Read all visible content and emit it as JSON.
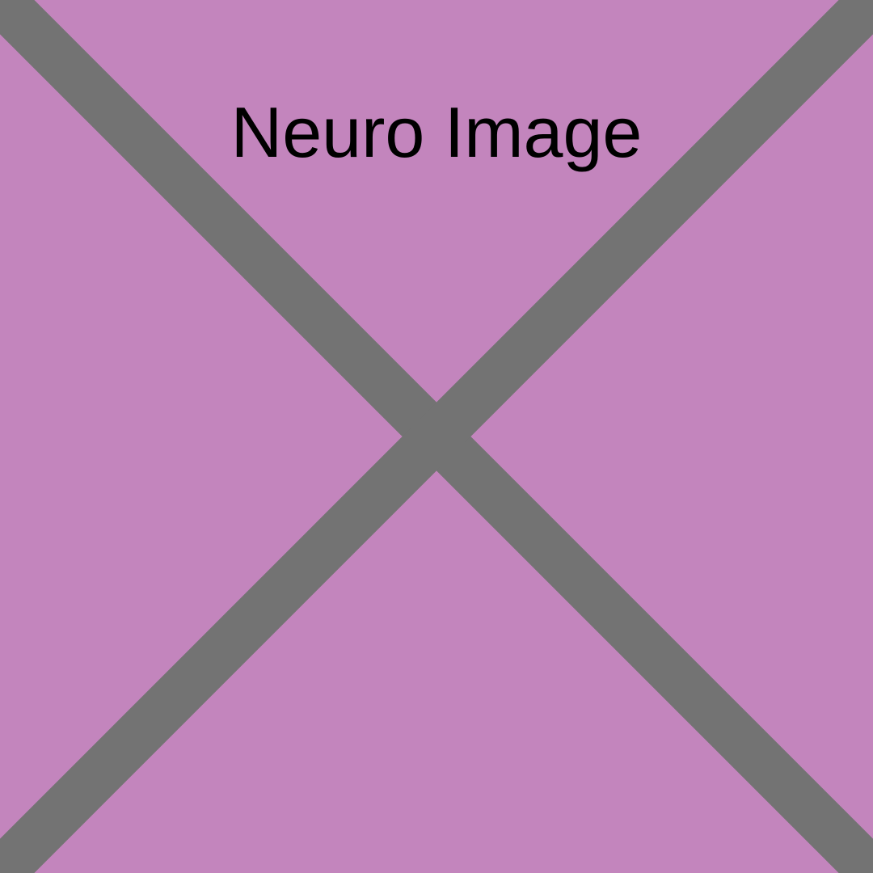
{
  "placeholder": {
    "label": "Neuro Image",
    "background_color": "#c385bd",
    "cross_color": "#737373",
    "label_color": "#000000",
    "icon": "cross-icon"
  }
}
